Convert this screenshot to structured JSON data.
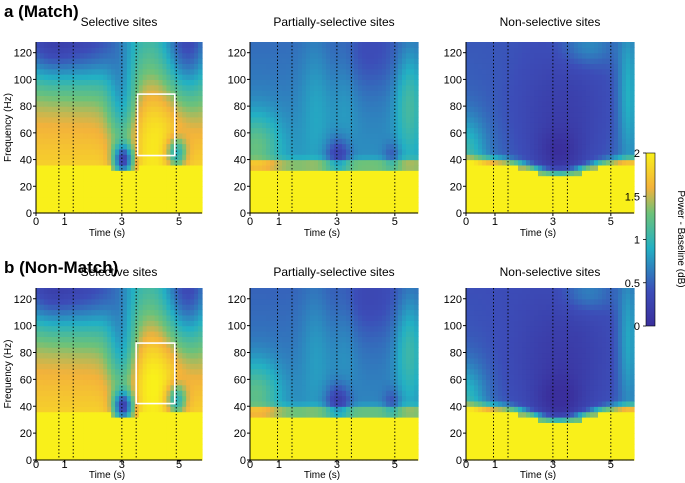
{
  "figure": {
    "colors": {
      "high": "#f9f01a",
      "mid_high": "#f3b23b",
      "mid": "#23b0c3",
      "low": "#3c4db8",
      "lowest": "#3a2f9c",
      "annotation_line": "#000000",
      "roi_box": "#ffffff"
    }
  },
  "chart_data": [
    {
      "panel_label": "a (Match)",
      "type": "heatmap",
      "subplots": [
        {
          "title": "Selective sites",
          "xlabel": "Time (s)",
          "ylabel": "Frequency (Hz)",
          "xlim": [
            0,
            5.8
          ],
          "ylim": [
            0,
            128
          ],
          "xticks": [
            0,
            1,
            3,
            5
          ],
          "yticks": [
            0,
            20,
            40,
            60,
            80,
            100,
            120
          ],
          "event_lines": [
            0.8,
            1.3,
            3.0,
            3.5,
            4.9
          ],
          "roi_box": {
            "t": [
              3.55,
              4.85
            ],
            "f": [
              43,
              89
            ]
          },
          "profile": "selective"
        },
        {
          "title": "Partially-selective sites",
          "xlabel": "Time (s)",
          "ylabel": "",
          "xlim": [
            0,
            5.8
          ],
          "ylim": [
            0,
            128
          ],
          "xticks": [
            0,
            1,
            3,
            5
          ],
          "yticks": [
            0,
            20,
            40,
            60,
            80,
            100,
            120
          ],
          "event_lines": [
            0.95,
            1.45,
            3.0,
            3.5,
            5.0
          ],
          "profile": "partial"
        },
        {
          "title": "Non-selective sites",
          "xlabel": "Time (s)",
          "ylabel": "",
          "xlim": [
            0,
            5.8
          ],
          "ylim": [
            0,
            128
          ],
          "xticks": [
            0,
            1,
            3,
            5
          ],
          "yticks": [
            0,
            20,
            40,
            60,
            80,
            100,
            120
          ],
          "event_lines": [
            0.95,
            1.45,
            3.0,
            3.5,
            5.0
          ],
          "profile": "nonselective"
        }
      ]
    },
    {
      "panel_label": "b (Non-Match)",
      "type": "heatmap",
      "subplots": [
        {
          "title": "Selective sites",
          "xlabel": "Time (s)",
          "ylabel": "Frequency (Hz)",
          "xlim": [
            0,
            5.8
          ],
          "ylim": [
            0,
            128
          ],
          "xticks": [
            0,
            1,
            3,
            5
          ],
          "yticks": [
            0,
            20,
            40,
            60,
            80,
            100,
            120
          ],
          "event_lines": [
            0.8,
            1.3,
            3.0,
            3.5,
            4.9
          ],
          "roi_box": {
            "t": [
              3.5,
              4.85
            ],
            "f": [
              42,
              87
            ]
          },
          "profile": "selective"
        },
        {
          "title": "Partially-selective sites",
          "xlabel": "Time (s)",
          "ylabel": "",
          "xlim": [
            0,
            5.8
          ],
          "ylim": [
            0,
            128
          ],
          "xticks": [
            0,
            1,
            3,
            5
          ],
          "yticks": [
            0,
            20,
            40,
            60,
            80,
            100,
            120
          ],
          "event_lines": [
            0.95,
            1.45,
            3.0,
            3.5,
            5.0
          ],
          "profile": "partial"
        },
        {
          "title": "Non-selective sites",
          "xlabel": "Time (s)",
          "ylabel": "",
          "xlim": [
            0,
            5.8
          ],
          "ylim": [
            0,
            128
          ],
          "xticks": [
            0,
            1,
            3,
            5
          ],
          "yticks": [
            0,
            20,
            40,
            60,
            80,
            100,
            120
          ],
          "event_lines": [
            0.95,
            1.45,
            3.0,
            3.5,
            5.0
          ],
          "profile": "nonselective"
        }
      ]
    }
  ],
  "colorbar": {
    "label": "Power - Baseline (dB)",
    "range": [
      0,
      2
    ],
    "ticks": [
      "0",
      "0.5",
      "1",
      "1.5",
      "2"
    ]
  }
}
